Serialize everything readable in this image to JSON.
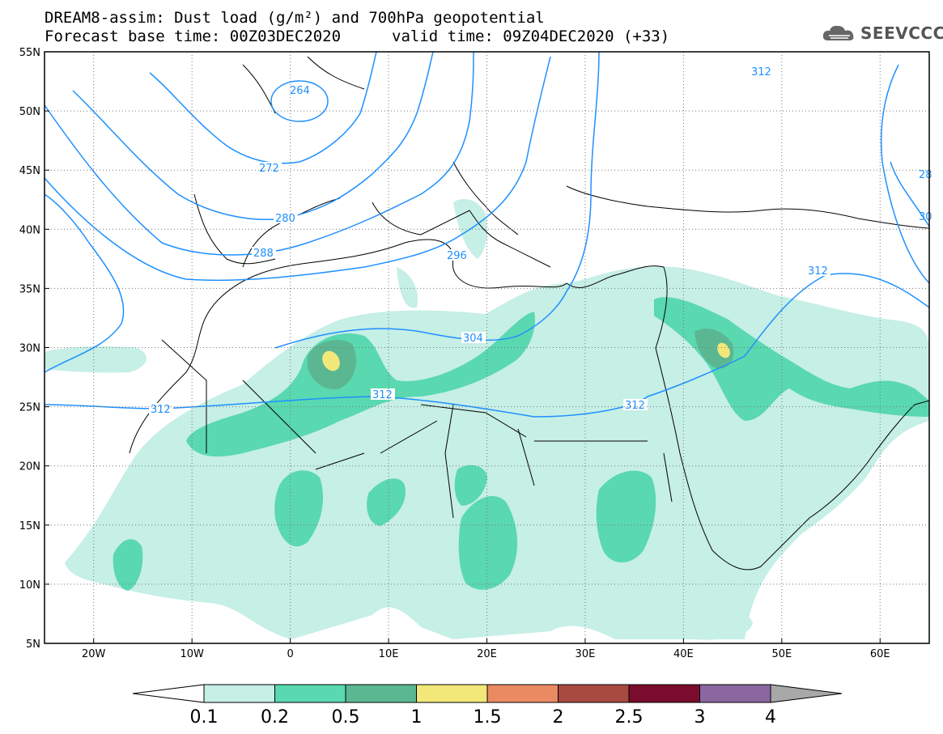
{
  "header": {
    "title": "DREAM8-assim: Dust load (g/m²) and 700hPa geopotential",
    "base_time": "Forecast base time: 00Z03DEC2020",
    "valid_time": "valid time: 09Z04DEC2020 (+33)"
  },
  "logo": {
    "text": "SEEVCCC",
    "icon": "cloud-icon"
  },
  "map": {
    "lon_range": [
      -25,
      65
    ],
    "lat_range": [
      5,
      55
    ],
    "lat_labels": [
      "55N",
      "50N",
      "45N",
      "40N",
      "35N",
      "30N",
      "25N",
      "20N",
      "15N",
      "10N",
      "5N"
    ],
    "lon_labels": [
      "20W",
      "10W",
      "0",
      "10E",
      "20E",
      "30E",
      "40E",
      "50E",
      "60E"
    ]
  },
  "contours": {
    "color": "#1e90ff",
    "labels": [
      "264",
      "272",
      "280",
      "288",
      "296",
      "304",
      "312",
      "312",
      "312",
      "312",
      "312",
      "28",
      "30"
    ]
  },
  "colorbar": {
    "tick_labels": [
      "0.1",
      "0.2",
      "0.5",
      "1",
      "1.5",
      "2",
      "2.5",
      "3",
      "4"
    ],
    "colors": [
      "#c6efe6",
      "#5ad8b0",
      "#5bb792",
      "#f2e87a",
      "#ea8a63",
      "#a84a40",
      "#7a0d2e",
      "#8b67a0",
      "#a8a8a8"
    ]
  },
  "dust_colors": {
    "low": "#c6efe6",
    "mid": "#5ad8b0",
    "high": "#5bb792",
    "peak": "#f2e87a"
  }
}
